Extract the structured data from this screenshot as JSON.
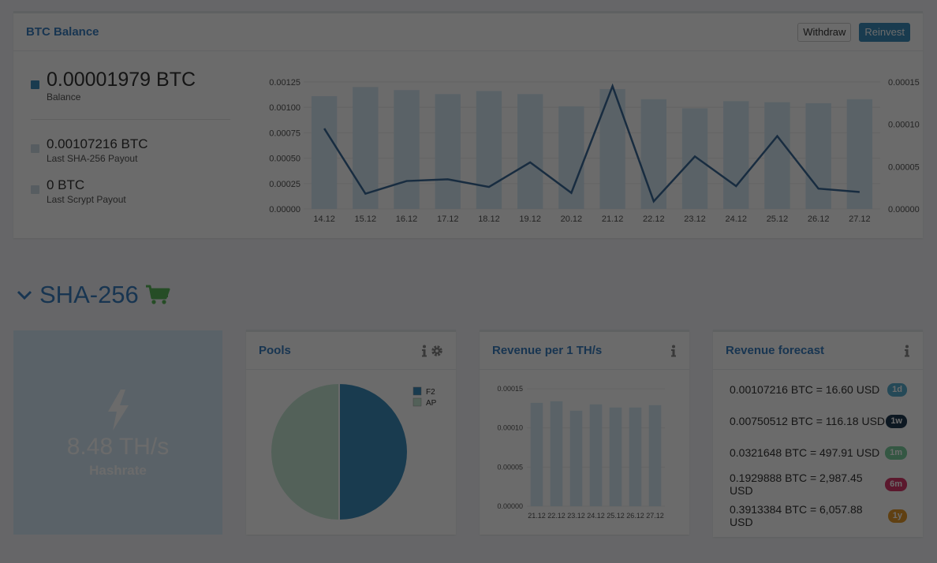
{
  "btc_panel": {
    "title": "BTC Balance",
    "withdraw_label": "Withdraw",
    "reinvest_label": "Reinvest",
    "balance_value": "0.00001979 BTC",
    "balance_label": "Balance",
    "sha_value": "0.00107216 BTC",
    "sha_label": "Last SHA-256 Payout",
    "scrypt_value": "0 BTC",
    "scrypt_label": "Last Scrypt Payout"
  },
  "colors": {
    "accent": "#3a7fc1",
    "balance_square": "#3c8dbc",
    "payout_square": "#d0dde6",
    "bar": "#d6eaf6",
    "line": "#3a6a98",
    "hash_box": "#d6eaf7",
    "pie_f2": "#3c8dbc",
    "pie_ap": "#c5e8d3",
    "badge_1d": "#5aaed0",
    "badge_1w": "#1f3a51",
    "badge_1m": "#7cd0a0",
    "badge_6m": "#d83a6d",
    "badge_1y": "#e59a2b",
    "cart": "#5cb85c"
  },
  "balance_chart": {
    "chart_data": {
      "type": "bar",
      "categories": [
        "14.12",
        "15.12",
        "16.12",
        "17.12",
        "18.12",
        "19.12",
        "20.12",
        "21.12",
        "22.12",
        "23.12",
        "24.12",
        "25.12",
        "26.12",
        "27.12"
      ],
      "series": [
        {
          "values": [
            0.00111,
            0.0012,
            0.00117,
            0.00113,
            0.00116,
            0.00113,
            0.00101,
            0.00118,
            0.00108,
            0.00099,
            0.00106,
            0.00105,
            0.00104,
            0.00108
          ]
        },
        {
          "type": "line",
          "axis": "right",
          "values": [
            9.5e-05,
            1.8e-05,
            3.3e-05,
            3.5e-05,
            2.6e-05,
            5.5e-05,
            1.9e-05,
            0.000145,
            9e-06,
            6.2e-05,
            2.7e-05,
            8.6e-05,
            2.4e-05,
            2e-05
          ]
        }
      ],
      "y_ticks": [
        "0.00000",
        "0.00025",
        "0.00050",
        "0.00075",
        "0.00100",
        "0.00125"
      ],
      "y2_ticks": [
        "0.00000",
        "0.00005",
        "0.00010",
        "0.00015"
      ],
      "ylim": [
        0,
        0.00135
      ],
      "y2lim": [
        0,
        0.000162
      ]
    }
  },
  "section": {
    "title": "SHA-256",
    "collapse_icon": "chevron-down-icon",
    "cart_icon": "cart-icon"
  },
  "hashrate": {
    "icon": "lightning-icon",
    "value": "8.48 TH/s",
    "label": "Hashrate"
  },
  "pools": {
    "title": "Pools",
    "chart_data": {
      "type": "pie",
      "labels": [
        "F2",
        "AP"
      ],
      "values": [
        50,
        50
      ]
    }
  },
  "revenue": {
    "title": "Revenue per 1 TH/s",
    "chart_data": {
      "type": "bar",
      "categories": [
        "21.12",
        "22.12",
        "23.12",
        "24.12",
        "25.12",
        "26.12",
        "27.12"
      ],
      "values": [
        0.000132,
        0.000134,
        0.000122,
        0.00013,
        0.000126,
        0.000126,
        0.000129
      ],
      "y_ticks": [
        "0.00000",
        "0.00005",
        "0.00010",
        "0.00015"
      ],
      "ylim": [
        0,
        0.00015
      ]
    }
  },
  "forecast": {
    "title": "Revenue forecast",
    "rows": [
      {
        "text": "0.00107216 BTC = 16.60 USD",
        "badge": "1d"
      },
      {
        "text": "0.00750512 BTC = 116.18 USD",
        "badge": "1w"
      },
      {
        "text": "0.0321648 BTC = 497.91 USD",
        "badge": "1m"
      },
      {
        "text": "0.1929888 BTC = 2,987.45 USD",
        "badge": "6m"
      },
      {
        "text": "0.3913384 BTC = 6,057.88 USD",
        "badge": "1y"
      }
    ]
  }
}
